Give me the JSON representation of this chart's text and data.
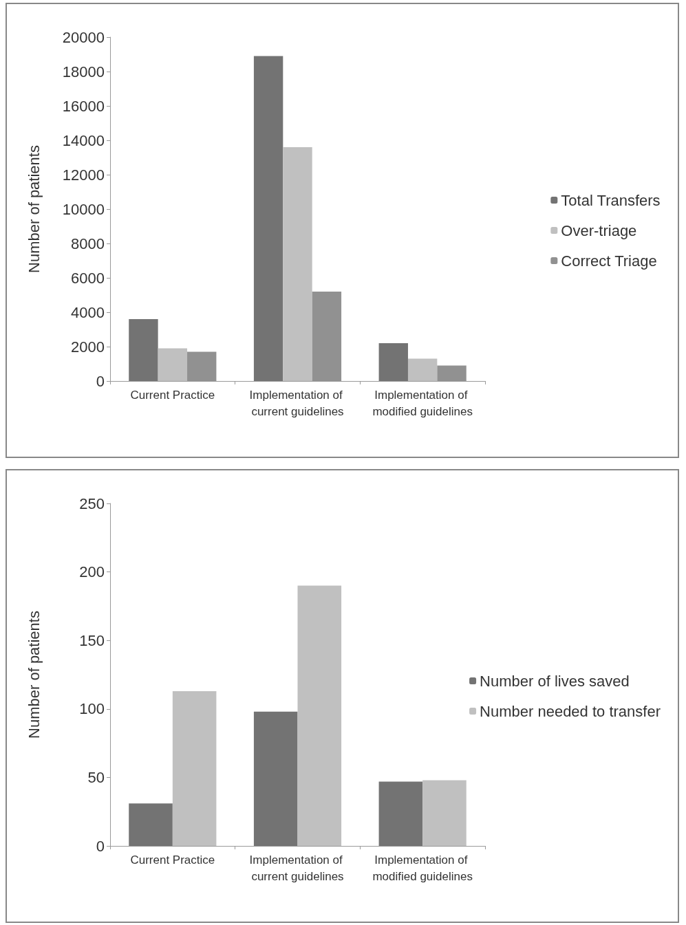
{
  "chart_data": [
    {
      "type": "bar",
      "ylabel": "Number of patients",
      "categories": [
        "Current Practice",
        "Implementation of current guidelines",
        "Implementation of modified guidelines"
      ],
      "series": [
        {
          "name": "Total Transfers",
          "color": "#737373",
          "values": [
            3600,
            18900,
            2200
          ]
        },
        {
          "name": "Over-triage",
          "color": "#c0c0c0",
          "values": [
            1900,
            13600,
            1300
          ]
        },
        {
          "name": "Correct Triage",
          "color": "#919191",
          "values": [
            1700,
            5200,
            900
          ]
        }
      ],
      "ylim": [
        0,
        20000
      ],
      "yticks": [
        0,
        2000,
        4000,
        6000,
        8000,
        10000,
        12000,
        14000,
        16000,
        18000,
        20000
      ],
      "grid": false,
      "legend": "right"
    },
    {
      "type": "bar",
      "ylabel": "Number of patients",
      "categories": [
        "Current Practice",
        "Implementation of current guidelines",
        "Implementation of modified guidelines"
      ],
      "series": [
        {
          "name": "Number of lives saved",
          "color": "#737373",
          "values": [
            31,
            98,
            47
          ]
        },
        {
          "name": "Number needed to transfer",
          "color": "#c0c0c0",
          "values": [
            113,
            190,
            48
          ]
        }
      ],
      "ylim": [
        0,
        250
      ],
      "yticks": [
        0,
        50,
        100,
        150,
        200,
        250
      ],
      "grid": false,
      "legend": "right"
    }
  ]
}
